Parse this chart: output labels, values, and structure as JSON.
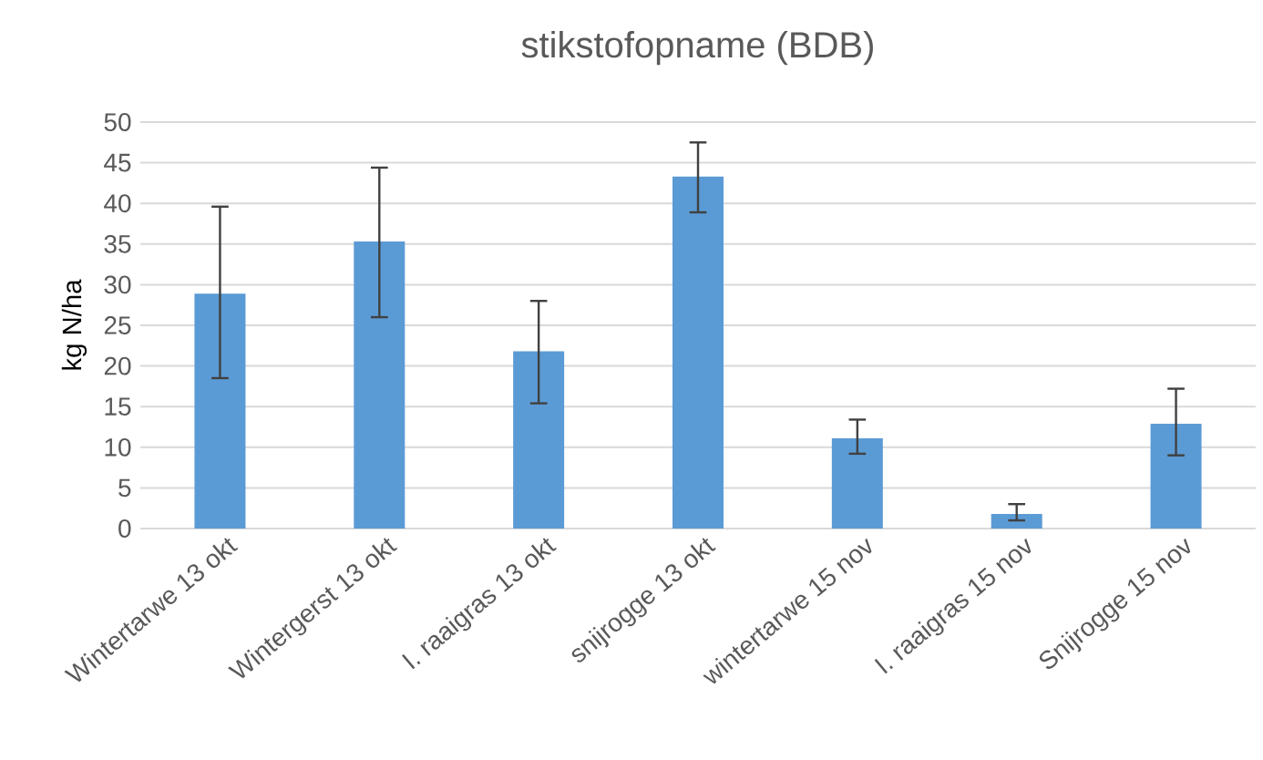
{
  "chart_data": {
    "type": "bar",
    "title": "stikstofopname (BDB)",
    "ylabel": "kg N/ha",
    "categories": [
      "Wintertarwe 13 okt",
      "Wintergerst 13 okt",
      "I. raaigras 13 okt",
      "snijrogge 13 okt",
      "wintertarwe 15 nov",
      "I. raaigras 15 nov",
      "Snijrogge 15 nov"
    ],
    "values": [
      28.9,
      35.3,
      21.8,
      43.3,
      11.1,
      1.8,
      12.9
    ],
    "errors": [
      [
        18.5,
        39.6
      ],
      [
        26,
        44.4
      ],
      [
        15.4,
        28
      ],
      [
        38.9,
        47.5
      ],
      [
        9.2,
        13.4
      ],
      [
        1,
        3
      ],
      [
        9,
        17.2
      ]
    ],
    "color": "#5b9bd5",
    "ylim": [
      0,
      50
    ],
    "yticks": [
      0,
      5,
      10,
      15,
      20,
      25,
      30,
      35,
      40,
      45,
      50
    ],
    "grid": "y"
  }
}
